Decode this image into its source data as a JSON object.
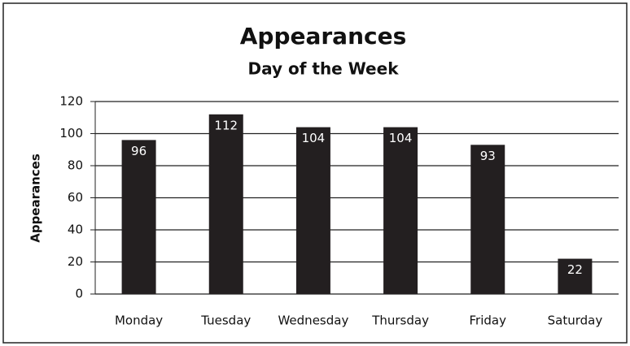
{
  "chart_data": {
    "type": "bar",
    "title": "Appearances",
    "subtitle": "Day of the Week",
    "y_label": "Appearances",
    "categories": [
      "Monday",
      "Tuesday",
      "Wednesday",
      "Thursday",
      "Friday",
      "Saturday"
    ],
    "values": [
      96,
      112,
      104,
      104,
      93,
      22
    ],
    "color": "#231f20",
    "ylim": [
      0,
      120
    ],
    "yticks": [
      0,
      20,
      40,
      60,
      80,
      100,
      120
    ],
    "grid": true
  }
}
